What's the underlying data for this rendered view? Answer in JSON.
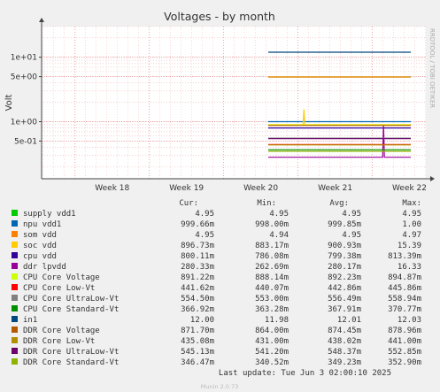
{
  "chart_data": {
    "type": "line",
    "title": "Voltages - by month",
    "ylabel": "Volt",
    "side_label": "RRDTOOL / TOBI OETIKER",
    "footer": "Munin 2.0.73",
    "y_scale": "log",
    "ylim": [
      0.13,
      30
    ],
    "y_ticks": [
      {
        "value": 10,
        "label": "1e+01"
      },
      {
        "value": 5,
        "label": "5e+00"
      },
      {
        "value": 1,
        "label": "1e+00"
      },
      {
        "value": 0.5,
        "label": "5e-01"
      }
    ],
    "x_ticks": [
      "Week 18",
      "Week 19",
      "Week 20",
      "Week 21",
      "Week 22"
    ],
    "data_start_week": 20.6,
    "x_range_weeks": [
      17.55,
      22.72
    ],
    "columns": [
      "Cur:",
      "Min:",
      "Avg:",
      "Max:"
    ],
    "last_update": "Last update:  Tue Jun  3 02:00:10 2025",
    "series": [
      {
        "name": "supply vdd1",
        "color": "#00cc00",
        "value": 4.95,
        "cur": "4.95",
        "min": "4.95",
        "avg": "4.95",
        "max": "4.95"
      },
      {
        "name": "npu vdd1",
        "color": "#0066b3",
        "value": 1.0,
        "cur": "999.66m",
        "min": "998.00m",
        "avg": "999.85m",
        "max": "1.00"
      },
      {
        "name": "som vdd",
        "color": "#ff8000",
        "value": 4.95,
        "cur": "4.95",
        "min": "4.94",
        "avg": "4.95",
        "max": "4.97"
      },
      {
        "name": "soc vdd",
        "color": "#ffcc00",
        "value": 0.897,
        "cur": "896.73m",
        "min": "883.17m",
        "avg": "900.93m",
        "max": "15.39",
        "spike": 1.55
      },
      {
        "name": "cpu vdd",
        "color": "#330099",
        "value": 0.8,
        "cur": "800.11m",
        "min": "786.08m",
        "avg": "799.38m",
        "max": "813.39m"
      },
      {
        "name": "ddr lpvdd",
        "color": "#990099",
        "value": 0.28,
        "cur": "280.33m",
        "min": "262.69m",
        "avg": "280.17m",
        "max": "16.33",
        "spike": 0.9
      },
      {
        "name": "CPU Core Voltage",
        "color": "#ccff00",
        "value": 0.891,
        "cur": "891.22m",
        "min": "888.14m",
        "avg": "892.23m",
        "max": "894.87m"
      },
      {
        "name": "CPU Core Low-Vt",
        "color": "#ff0000",
        "value": 0.442,
        "cur": "441.62m",
        "min": "440.07m",
        "avg": "442.86m",
        "max": "445.86m"
      },
      {
        "name": "CPU Core UltraLow-Vt",
        "color": "#808080",
        "value": 0.5545,
        "cur": "554.50m",
        "min": "553.00m",
        "avg": "556.49m",
        "max": "558.94m"
      },
      {
        "name": "CPU Core Standard-Vt",
        "color": "#008f00",
        "value": 0.367,
        "cur": "366.92m",
        "min": "363.28m",
        "avg": "367.91m",
        "max": "370.77m"
      },
      {
        "name": "in1",
        "color": "#00487d",
        "value": 12.0,
        "cur": "12.00",
        "min": "11.98",
        "avg": "12.01",
        "max": "12.03"
      },
      {
        "name": "DDR Core Voltage",
        "color": "#b35a00",
        "value": 0.872,
        "cur": "871.70m",
        "min": "864.00m",
        "avg": "874.45m",
        "max": "878.96m"
      },
      {
        "name": "DDR Core Low-Vt",
        "color": "#b38f00",
        "value": 0.435,
        "cur": "435.08m",
        "min": "431.00m",
        "avg": "438.02m",
        "max": "441.00m"
      },
      {
        "name": "DDR Core UltraLow-Vt",
        "color": "#6b006b",
        "value": 0.545,
        "cur": "545.13m",
        "min": "541.20m",
        "avg": "548.37m",
        "max": "552.85m"
      },
      {
        "name": "DDR Core Standard-Vt",
        "color": "#8fb300",
        "value": 0.3465,
        "cur": "346.47m",
        "min": "340.52m",
        "avg": "349.23m",
        "max": "352.90m"
      }
    ]
  }
}
